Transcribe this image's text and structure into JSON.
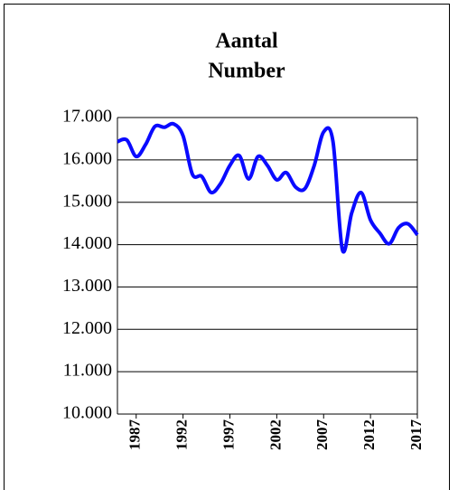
{
  "chart_data": {
    "type": "line",
    "title": [
      "Aantal",
      "Number"
    ],
    "x": [
      1985,
      1986,
      1987,
      1988,
      1989,
      1990,
      1991,
      1992,
      1993,
      1994,
      1995,
      1996,
      1997,
      1998,
      1999,
      2000,
      2001,
      2002,
      2003,
      2004,
      2005,
      2006,
      2007,
      2008,
      2009,
      2010,
      2011,
      2012,
      2013,
      2014,
      2015,
      2016,
      2017
    ],
    "series": [
      {
        "name": "Aantal",
        "color": "#0a0aff",
        "values": [
          16430,
          16470,
          16080,
          16360,
          16790,
          16770,
          16850,
          16570,
          15660,
          15610,
          15230,
          15440,
          15870,
          16100,
          15550,
          16080,
          15870,
          15530,
          15700,
          15360,
          15320,
          15870,
          16660,
          16430,
          13880,
          14750,
          15230,
          14580,
          14270,
          14020,
          14400,
          14490,
          14230
        ]
      }
    ],
    "xlim": [
      1985,
      2017
    ],
    "xticks": [
      1987,
      1992,
      1997,
      2002,
      2007,
      2012,
      2017
    ],
    "ylim": [
      10000,
      17000
    ],
    "yticks": [
      {
        "value": 10000,
        "label": "10.000"
      },
      {
        "value": 11000,
        "label": "11.000"
      },
      {
        "value": 12000,
        "label": "12.000"
      },
      {
        "value": 13000,
        "label": "13.000"
      },
      {
        "value": 14000,
        "label": "14.000"
      },
      {
        "value": 15000,
        "label": "15.000"
      },
      {
        "value": 16000,
        "label": "16.000"
      },
      {
        "value": 17000,
        "label": "17.000"
      }
    ],
    "grid": true
  }
}
